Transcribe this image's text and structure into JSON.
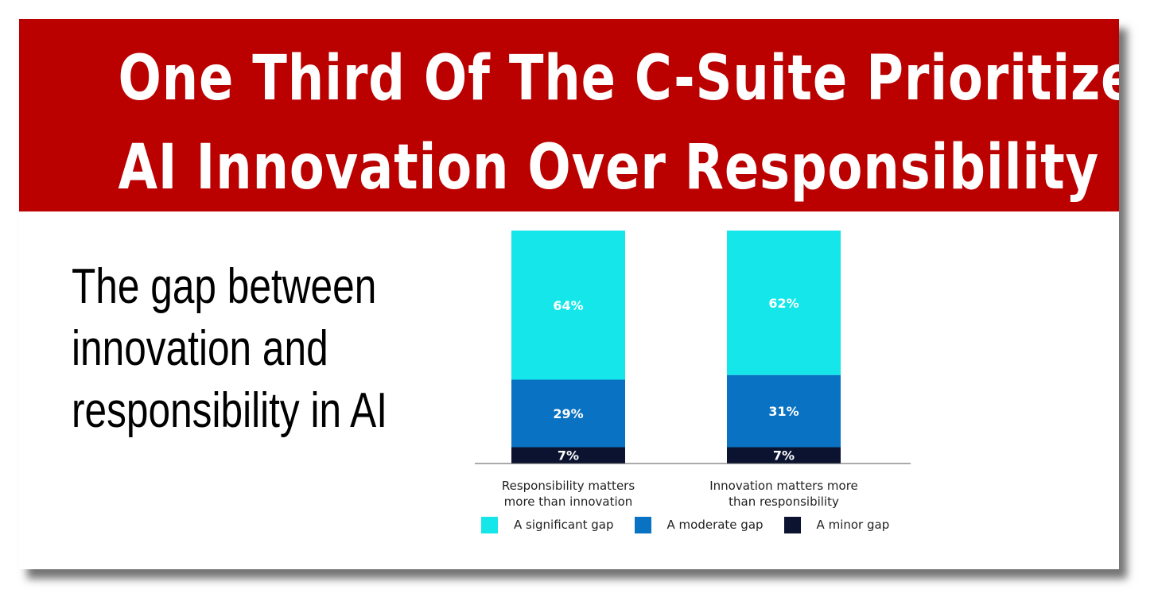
{
  "header": {
    "title_line1": "One Third Of The C-Suite Prioritizes",
    "title_line2": "AI Innovation Over Responsibility"
  },
  "subtitle_lines": [
    "The gap between",
    "innovation and",
    "responsibility in AI"
  ],
  "colors": {
    "banner": "#bb0000",
    "significant": "#14e6ea",
    "moderate": "#0a72c2",
    "minor": "#0b1330"
  },
  "chart_data": {
    "type": "bar",
    "stacked": true,
    "categories": [
      [
        "Responsibility matters",
        "more than innovation"
      ],
      [
        "Innovation matters more",
        "than responsibility"
      ]
    ],
    "series": [
      {
        "name": "A minor gap",
        "values": [
          7,
          7
        ],
        "labels": [
          "7%",
          "7%"
        ]
      },
      {
        "name": "A moderate gap",
        "values": [
          29,
          31
        ],
        "labels": [
          "29%",
          "31%"
        ]
      },
      {
        "name": "A significant gap",
        "values": [
          64,
          62
        ],
        "labels": [
          "64%",
          "62%"
        ]
      }
    ],
    "ylim": [
      0,
      100
    ],
    "legend_position": "bottom",
    "grid": false
  }
}
